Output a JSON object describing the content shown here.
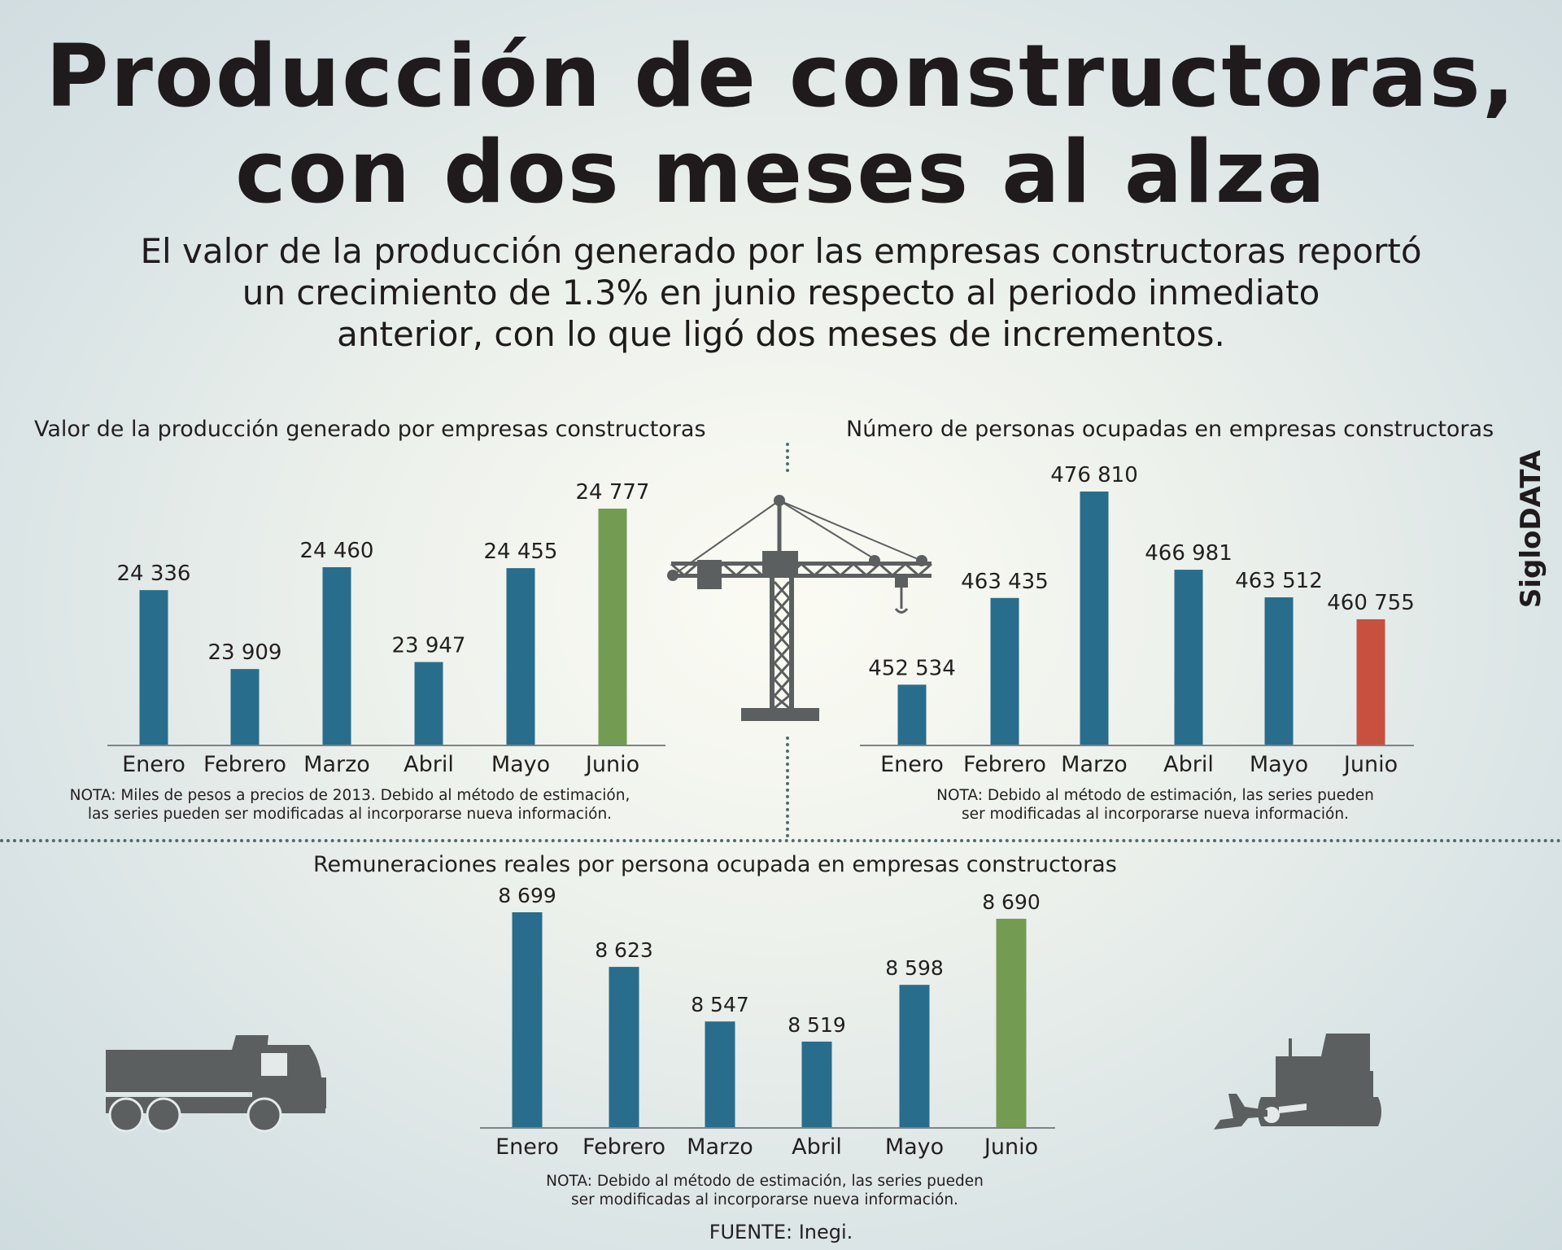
{
  "header": {
    "title_line1": "Producción de constructoras,",
    "title_line2": "con dos meses al alza",
    "subtitle_line1": "El valor de la producción generado por las empresas constructoras reportó",
    "subtitle_line2": "un crecimiento de 1.3% en junio respecto al periodo inmediato",
    "subtitle_line3": "anterior, con lo que ligó dos meses de incrementos."
  },
  "brand": "SigloDATA",
  "source": "FUENTE: Inegi.",
  "colors": {
    "bar": "#296d8c",
    "highlight_up": "#739c52",
    "highlight_down": "#c8503f",
    "icon": "#5b5f60",
    "axis": "#7c8486"
  },
  "icons": [
    "tower-crane-icon",
    "dump-truck-icon",
    "bulldozer-icon"
  ],
  "chart_data": [
    {
      "type": "bar",
      "title": "Valor de la producción generado por empresas constructoras",
      "categories": [
        "Enero",
        "Febrero",
        "Marzo",
        "Abril",
        "Mayo",
        "Junio"
      ],
      "values": [
        24336,
        23909,
        24460,
        23947,
        24455,
        24777
      ],
      "value_labels": [
        "24 336",
        "23 909",
        "24 460",
        "23 947",
        "24 455",
        "24 777"
      ],
      "bar_colors": [
        "#296d8c",
        "#296d8c",
        "#296d8c",
        "#296d8c",
        "#296d8c",
        "#739c52"
      ],
      "ylim": [
        23500,
        25000
      ],
      "note_line1": "NOTA: Miles de pesos a precios de 2013. Debido al método de estimación,",
      "note_line2": "las series pueden ser modificadas al incorporarse nueva información."
    },
    {
      "type": "bar",
      "title": "Número de personas ocupadas en empresas constructoras",
      "categories": [
        "Enero",
        "Febrero",
        "Marzo",
        "Abril",
        "Mayo",
        "Junio"
      ],
      "values": [
        452534,
        463435,
        476810,
        466981,
        463512,
        460755
      ],
      "value_labels": [
        "452 534",
        "463 435",
        "476 810",
        "466 981",
        "463 512",
        "460 755"
      ],
      "bar_colors": [
        "#296d8c",
        "#296d8c",
        "#296d8c",
        "#296d8c",
        "#296d8c",
        "#c8503f"
      ],
      "ylim": [
        445000,
        480000
      ],
      "note_line1": "NOTA: Debido al método de estimación, las series pueden",
      "note_line2": "ser modificadas al incorporarse nueva información."
    },
    {
      "type": "bar",
      "title": "Remuneraciones reales por persona ocupada en empresas constructoras",
      "categories": [
        "Enero",
        "Febrero",
        "Marzo",
        "Abril",
        "Mayo",
        "Junio"
      ],
      "values": [
        8699,
        8623,
        8547,
        8519,
        8598,
        8690
      ],
      "value_labels": [
        "8 699",
        "8 623",
        "8 547",
        "8 519",
        "8 598",
        "8 690"
      ],
      "bar_colors": [
        "#296d8c",
        "#296d8c",
        "#296d8c",
        "#296d8c",
        "#296d8c",
        "#739c52"
      ],
      "ylim": [
        8400,
        8720
      ],
      "note_line1": "NOTA: Debido al método de estimación, las series pueden",
      "note_line2": "ser modificadas al incorporarse nueva información."
    }
  ]
}
